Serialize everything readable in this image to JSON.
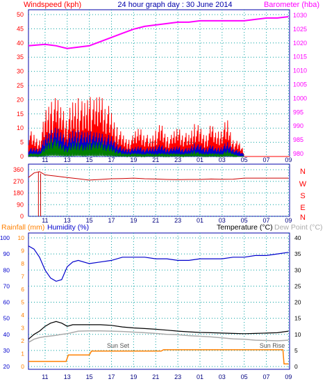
{
  "header": {
    "left_label": "Windspeed (kph)",
    "title": "24 hour graph day : 30 June 2014",
    "right_label": "Barometer (hba)"
  },
  "colors": {
    "wind_speed": "#ff0000",
    "wind_gust_avg": "#0000cc",
    "wind_low": "#008000",
    "barometer": "#ff00ff",
    "direction": "#cc0000",
    "humidity": "#0000cc",
    "temperature": "#000000",
    "dew_point": "#aaaaaa",
    "rainfall": "#ff8000",
    "label_red": "#ff0000",
    "label_magenta": "#ff00ff",
    "axis_blue": "#0000aa",
    "grid": "#00a0a0"
  },
  "x_ticks": [
    "11",
    "13",
    "15",
    "17",
    "19",
    "21",
    "23",
    "01",
    "03",
    "05",
    "07",
    "09"
  ],
  "panel_wind": {
    "left_ticks": [
      "0",
      "5",
      "10",
      "15",
      "20",
      "25",
      "30",
      "35",
      "40",
      "45",
      "50"
    ],
    "right_ticks": [
      "980",
      "985",
      "990",
      "995",
      "1000",
      "1005",
      "1010",
      "1015",
      "1020",
      "1025",
      "1030"
    ]
  },
  "panel_dir": {
    "left_ticks": [
      "0",
      "90",
      "180",
      "270",
      "360"
    ],
    "right_labels": [
      "N",
      "W",
      "S",
      "E",
      "N"
    ]
  },
  "panel_temp": {
    "left_label_rain": "Rainfall (mm)",
    "left_label_hum": "Humidity (%)",
    "right_label_temp": "Temperature (°C)",
    "right_label_dew": "Dew Point (°C)",
    "left_ticks_hum": [
      "20",
      "30",
      "40",
      "50",
      "60",
      "70",
      "80",
      "90",
      "100"
    ],
    "left_ticks_rain": [
      "0",
      "1",
      "2",
      "3",
      "4",
      "5",
      "6",
      "7",
      "8",
      "9",
      "10"
    ],
    "right_ticks": [
      "0",
      "5",
      "10",
      "15",
      "20",
      "25",
      "30",
      "35",
      "40"
    ],
    "sun_set": "Sun Set",
    "sun_rise": "Sun Rise"
  },
  "chart_data": [
    {
      "type": "line",
      "title": "24 hour graph day : 30 June 2014",
      "ylabel": "Windspeed (kph)",
      "ylim": [
        0,
        50
      ],
      "y2label": "Barometer (hba)",
      "y2lim": [
        980,
        1032
      ],
      "x_hours": [
        9.5,
        11,
        13,
        15,
        17,
        19,
        21,
        23,
        25,
        27,
        29,
        31,
        33
      ],
      "series": [
        {
          "name": "Barometer",
          "x": [
            9.5,
            11,
            12,
            13,
            14,
            15,
            16,
            17,
            18,
            19,
            20,
            21,
            22,
            23,
            24,
            25,
            26,
            27,
            28,
            29,
            30,
            31,
            32,
            33
          ],
          "values": [
            1019,
            1019.5,
            1019,
            1018,
            1018.5,
            1019,
            1020.5,
            1022,
            1023.5,
            1025,
            1026,
            1026.5,
            1027,
            1027.5,
            1027.5,
            1028,
            1028,
            1028,
            1028,
            1028,
            1028.5,
            1029,
            1029,
            1029.5
          ]
        },
        {
          "name": "Wind speed",
          "x": [
            9.5,
            10,
            10.5,
            11,
            11.5,
            12,
            12.5,
            13,
            13.5,
            14,
            14.5,
            15,
            15.5,
            16,
            16.5,
            17,
            17.5,
            18,
            18.5,
            19,
            19.5,
            20,
            20.5,
            21,
            21.5,
            22,
            22.5,
            23,
            23.5,
            24,
            24.5,
            25,
            25.5,
            26,
            26.5,
            27,
            27.5,
            28,
            28.5,
            29
          ],
          "values": [
            8,
            6,
            5,
            12,
            17,
            16,
            15,
            12,
            15,
            18,
            14,
            19,
            15,
            19,
            16,
            12,
            9,
            6,
            5,
            6,
            9,
            7,
            5,
            8,
            9,
            6,
            6,
            9,
            7,
            6,
            10,
            8,
            6,
            9,
            7,
            9,
            10,
            5,
            4,
            2
          ]
        },
        {
          "name": "Wind average",
          "x": [
            9.5,
            10,
            10.5,
            11,
            11.5,
            12,
            12.5,
            13,
            13.5,
            14,
            14.5,
            15,
            15.5,
            16,
            16.5,
            17,
            17.5,
            18,
            18.5,
            19,
            19.5,
            20,
            20.5,
            21,
            21.5,
            22,
            22.5,
            23,
            23.5,
            24,
            24.5,
            25,
            25.5,
            26,
            26.5,
            27,
            27.5,
            28,
            28.5,
            29
          ],
          "values": [
            3,
            3,
            3,
            7,
            10,
            10,
            9,
            7,
            9,
            10,
            8,
            10,
            8,
            9,
            8,
            7,
            5,
            3,
            3,
            3,
            4,
            3,
            3,
            4,
            4,
            3,
            3,
            4,
            3,
            3,
            5,
            4,
            3,
            4,
            3,
            4,
            5,
            3,
            2,
            1
          ]
        },
        {
          "name": "Wind low",
          "x": [
            9.5,
            10,
            10.5,
            11,
            11.5,
            12,
            12.5,
            13,
            13.5,
            14,
            14.5,
            15,
            15.5,
            16,
            16.5,
            17,
            17.5,
            18,
            18.5,
            19,
            19.5,
            20,
            20.5,
            21,
            21.5,
            22,
            22.5,
            23,
            23.5,
            24,
            24.5,
            25,
            25.5,
            26,
            26.5,
            27,
            27.5,
            28,
            28.5,
            29
          ],
          "values": [
            1,
            1,
            1,
            3,
            6,
            5,
            4,
            3,
            4,
            5,
            3,
            5,
            4,
            5,
            4,
            3,
            2,
            1,
            1,
            1,
            1,
            1,
            1,
            1,
            1,
            1,
            1,
            1,
            1,
            1,
            2,
            1,
            1,
            1,
            1,
            1,
            2,
            1,
            0,
            0
          ]
        }
      ]
    },
    {
      "type": "line",
      "ylabel": "Direction",
      "ylim": [
        0,
        360
      ],
      "series": [
        {
          "name": "Wind direction",
          "x": [
            9.5,
            10,
            10.5,
            11,
            11.5,
            12,
            13,
            14,
            15,
            16,
            17,
            18,
            19,
            20,
            21,
            22,
            23,
            24,
            25,
            26,
            27,
            28,
            29,
            30,
            31,
            32,
            33
          ],
          "values": [
            300,
            335,
            345,
            320,
            315,
            310,
            300,
            290,
            280,
            285,
            290,
            292,
            295,
            290,
            288,
            285,
            283,
            285,
            285,
            288,
            286,
            287,
            295,
            295,
            295,
            295,
            295
          ]
        }
      ]
    },
    {
      "type": "line",
      "ylabel": "Humidity (%)",
      "ylim": [
        20,
        100
      ],
      "y2label": "Temperature (°C)",
      "y2lim": [
        0,
        40
      ],
      "series": [
        {
          "name": "Humidity",
          "x": [
            9.5,
            10,
            10.5,
            11,
            11.5,
            12,
            12.5,
            13,
            13.5,
            14,
            15,
            16,
            17,
            18,
            19,
            20,
            21,
            22,
            23,
            24,
            25,
            26,
            27,
            28,
            29,
            30,
            31,
            32,
            33
          ],
          "values": [
            95,
            93,
            88,
            80,
            75,
            73,
            74,
            82,
            85,
            86,
            84,
            85,
            86,
            88,
            88,
            88,
            87,
            87,
            86,
            86,
            87,
            87,
            87,
            88,
            88,
            89,
            89,
            90,
            91
          ]
        },
        {
          "name": "Temperature",
          "x": [
            9.5,
            10,
            10.5,
            11,
            11.5,
            12,
            12.5,
            13,
            13.5,
            14,
            15,
            16,
            17,
            18,
            19,
            20,
            21,
            22,
            23,
            24,
            25,
            26,
            27,
            28,
            29,
            30,
            31,
            32,
            33
          ],
          "values": [
            8.5,
            10,
            11,
            12.5,
            13.5,
            14,
            13.5,
            12.5,
            13,
            13,
            13,
            13,
            12.8,
            12.3,
            12,
            11.8,
            11.6,
            11.3,
            11,
            10.8,
            10.6,
            10.5,
            10.4,
            10.3,
            10.2,
            10.3,
            10.4,
            10.5,
            11
          ]
        },
        {
          "name": "Dew point",
          "x": [
            9.5,
            10,
            10.5,
            11,
            11.5,
            12,
            12.5,
            13,
            13.5,
            14,
            15,
            16,
            17,
            18,
            19,
            20,
            21,
            22,
            23,
            24,
            25,
            26,
            27,
            28,
            29,
            30,
            31,
            32,
            33
          ],
          "values": [
            7.5,
            8.5,
            9,
            9.3,
            9.5,
            9.7,
            10,
            10.2,
            10.6,
            11,
            11.1,
            11.1,
            11,
            10.9,
            10.7,
            10.5,
            10.3,
            10,
            9.9,
            9.6,
            9.4,
            9.2,
            8.9,
            8.6,
            8.5,
            8.2,
            8.1,
            8.0,
            8.2
          ]
        },
        {
          "name": "Rainfall",
          "x": [
            9.5,
            12.9,
            13.1,
            15,
            15.2,
            21.5,
            21.7,
            32.5,
            32.6,
            33
          ],
          "values": [
            0.4,
            0.4,
            0.9,
            0.9,
            1.2,
            1.2,
            1.3,
            1.3,
            0.2,
            0.2
          ]
        }
      ]
    }
  ]
}
